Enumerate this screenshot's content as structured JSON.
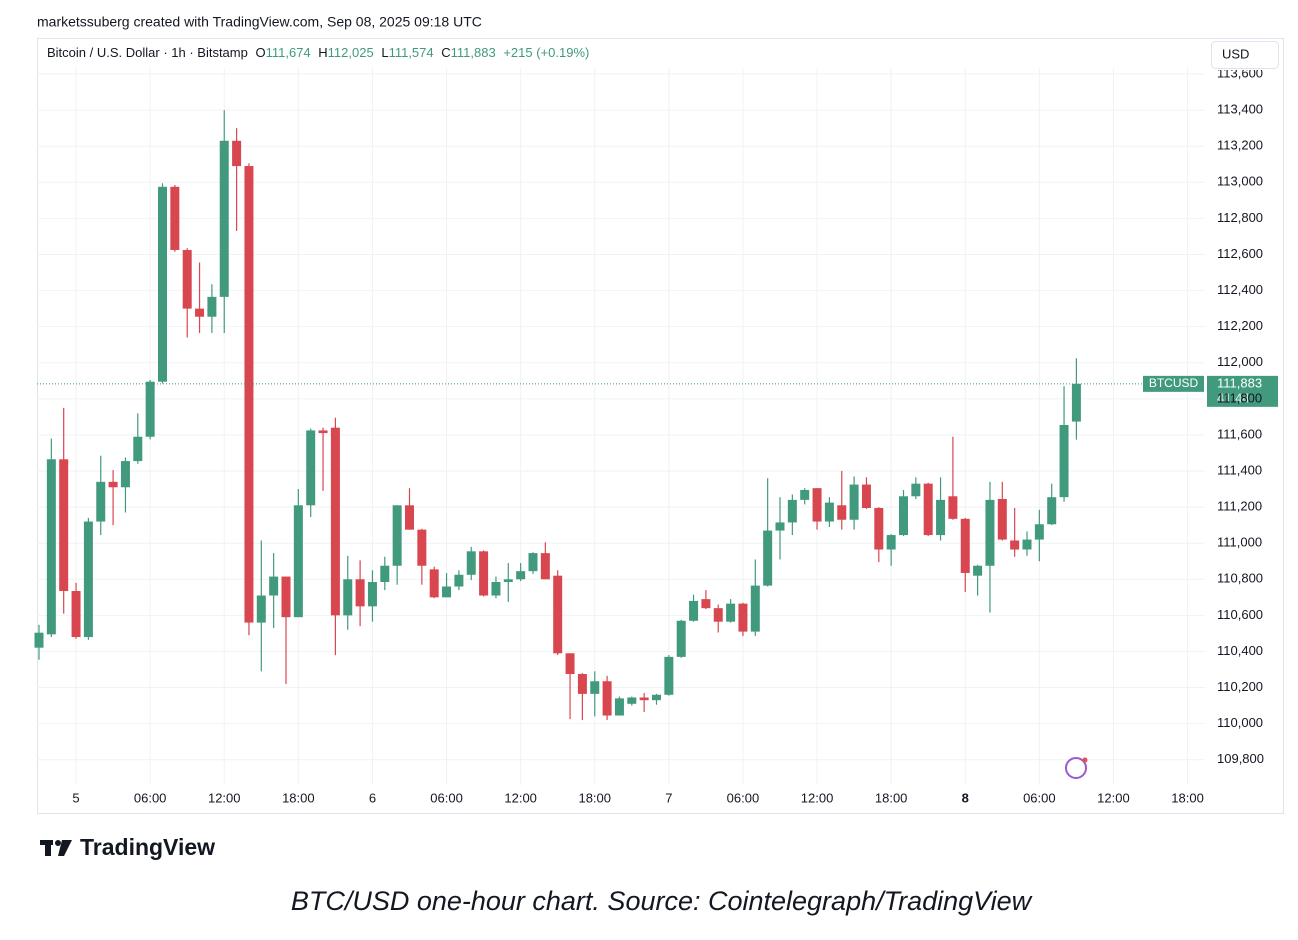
{
  "credit": "marketssuberg created with TradingView.com, Sep 08, 2025 09:18 UTC",
  "currency_button": "USD",
  "logo": "TradingView",
  "caption": "BTC/USD one-hour chart. Source: Cointelegraph/TradingView",
  "chart_data": {
    "type": "candlestick",
    "legend": {
      "symbol": "Bitcoin / U.S. Dollar · 1h · Bitstamp",
      "o_label": "O",
      "o": "111,674",
      "h_label": "H",
      "h": "112,025",
      "l_label": "L",
      "l": "111,574",
      "c_label": "C",
      "c": "111,883",
      "change": "+215 (+0.19%)"
    },
    "price_label": {
      "symbol": "BTCUSD",
      "price": "111,883",
      "countdown": "41:44"
    },
    "up_color": "#419a7e",
    "down_color": "#d8464f",
    "grid": true,
    "ylim": [
      109660,
      113650
    ],
    "yticks": [
      {
        "value": 109800,
        "label": "109,800"
      },
      {
        "value": 110000,
        "label": "110,000"
      },
      {
        "value": 110200,
        "label": "110,200"
      },
      {
        "value": 110400,
        "label": "110,400"
      },
      {
        "value": 110600,
        "label": "110,600"
      },
      {
        "value": 110800,
        "label": "110,800"
      },
      {
        "value": 111000,
        "label": "111,000"
      },
      {
        "value": 111200,
        "label": "111,200"
      },
      {
        "value": 111400,
        "label": "111,400"
      },
      {
        "value": 111600,
        "label": "111,600"
      },
      {
        "value": 111800,
        "label": "111,800"
      },
      {
        "value": 112000,
        "label": "112,000"
      },
      {
        "value": 112200,
        "label": "112,200"
      },
      {
        "value": 112400,
        "label": "112,400"
      },
      {
        "value": 112600,
        "label": "112,600"
      },
      {
        "value": 112800,
        "label": "112,800"
      },
      {
        "value": 113000,
        "label": "113,000"
      },
      {
        "value": 113200,
        "label": "113,200"
      },
      {
        "value": 113400,
        "label": "113,400"
      },
      {
        "value": 113600,
        "label": "113,600"
      }
    ],
    "categories": [
      null,
      null,
      null,
      "5",
      null,
      null,
      null,
      null,
      null,
      "06:00",
      null,
      null,
      null,
      null,
      null,
      "12:00",
      null,
      null,
      null,
      null,
      null,
      "18:00",
      null,
      null,
      null,
      null,
      null,
      "6",
      null,
      null,
      null,
      null,
      null,
      "06:00",
      null,
      null,
      null,
      null,
      null,
      "12:00",
      null,
      null,
      null,
      null,
      null,
      "18:00",
      null,
      null,
      null,
      null,
      null,
      "7",
      null,
      null,
      null,
      null,
      null,
      "06:00",
      null,
      null,
      null,
      null,
      null,
      "12:00",
      null,
      null,
      null,
      null,
      null,
      "18:00",
      null,
      null,
      null,
      null,
      null,
      "8",
      null,
      null,
      null,
      null,
      null,
      "06:00",
      null,
      null,
      null,
      null,
      null,
      "12:00",
      null,
      null,
      null,
      null,
      null,
      "18:00",
      null
    ],
    "open": [
      110421,
      110495,
      111465,
      110735,
      110480,
      111120,
      111340,
      111310,
      111455,
      111590,
      111895,
      112975,
      112625,
      112300,
      112255,
      112365,
      113230,
      113090,
      110560,
      110710,
      110815,
      110590,
      111210,
      111625,
      111640,
      110600,
      110800,
      110650,
      110785,
      110875,
      111210,
      111075,
      110855,
      110700,
      110760,
      110825,
      110955,
      110710,
      110785,
      110800,
      110845,
      110945,
      110820,
      110390,
      110275,
      110165,
      110235,
      110045,
      110110,
      110145,
      110130,
      110160,
      110370,
      110570,
      110690,
      110640,
      110565,
      110665,
      110510,
      110765,
      111070,
      111115,
      111240,
      111305,
      111120,
      111210,
      111130,
      111325,
      111195,
      110965,
      111045,
      111260,
      111330,
      111045,
      111260,
      111135,
      110820,
      110875,
      111245,
      111015,
      110965,
      111020,
      111105,
      111255,
      111674,
      null,
      null,
      null,
      null,
      null,
      null,
      null,
      null,
      null,
      null
    ],
    "high": [
      110548,
      111580,
      111750,
      110780,
      111140,
      111485,
      111405,
      111475,
      111720,
      111905,
      112995,
      112985,
      112635,
      112555,
      112435,
      113400,
      113300,
      113105,
      111015,
      110945,
      110815,
      111300,
      111635,
      111640,
      111695,
      110930,
      110905,
      110850,
      110925,
      111210,
      111305,
      111080,
      110870,
      110835,
      110850,
      110980,
      110960,
      110815,
      110890,
      110890,
      110950,
      111005,
      110850,
      110390,
      110280,
      110290,
      110265,
      110150,
      110150,
      110170,
      110165,
      110380,
      110575,
      110715,
      110740,
      110660,
      110690,
      110670,
      110910,
      111360,
      111255,
      111270,
      111305,
      111305,
      111255,
      111400,
      111370,
      111365,
      111200,
      111050,
      111295,
      111365,
      111335,
      111365,
      111590,
      111140,
      110880,
      111340,
      111340,
      111195,
      111065,
      111185,
      111330,
      111870,
      112025,
      null,
      null,
      null,
      null,
      null,
      null,
      null,
      null,
      null,
      null
    ],
    "low": [
      110354,
      110480,
      110610,
      110470,
      110465,
      111045,
      111100,
      111170,
      111440,
      111575,
      111885,
      112615,
      112140,
      112165,
      112165,
      112165,
      112730,
      110490,
      110290,
      110530,
      110220,
      110590,
      111145,
      111290,
      110380,
      110520,
      110540,
      110565,
      110740,
      110770,
      111075,
      110770,
      110695,
      110700,
      110740,
      110795,
      110705,
      110695,
      110675,
      110790,
      110830,
      110800,
      110380,
      110025,
      110020,
      110040,
      110020,
      110045,
      110100,
      110065,
      110105,
      110155,
      110365,
      110565,
      110635,
      110505,
      110560,
      110485,
      110485,
      110760,
      110910,
      111045,
      111215,
      111075,
      111090,
      111075,
      111075,
      111190,
      110895,
      110875,
      111040,
      111245,
      111040,
      111015,
      111130,
      110730,
      110710,
      110615,
      111015,
      110925,
      110930,
      110900,
      111100,
      111230,
      111574,
      null,
      null,
      null,
      null,
      null,
      null,
      null,
      null,
      null,
      null
    ],
    "close": [
      110504,
      111465,
      110735,
      110480,
      111120,
      111340,
      111310,
      111455,
      111590,
      111895,
      112975,
      112625,
      112300,
      112255,
      112365,
      113230,
      113090,
      110560,
      110710,
      110815,
      110590,
      111210,
      111625,
      111610,
      110600,
      110800,
      110650,
      110785,
      110875,
      111210,
      111075,
      110875,
      110700,
      110760,
      110825,
      110955,
      110710,
      110785,
      110800,
      110845,
      110945,
      110800,
      110390,
      110275,
      110165,
      110235,
      110045,
      110140,
      110145,
      110130,
      110160,
      110370,
      110570,
      110680,
      110640,
      110565,
      110665,
      110510,
      110765,
      111070,
      111115,
      111240,
      111295,
      111120,
      111225,
      111130,
      111325,
      111195,
      110965,
      111045,
      111260,
      111330,
      111045,
      111240,
      111135,
      110835,
      110875,
      111240,
      111020,
      110965,
      111020,
      111105,
      111255,
      111655,
      111883,
      null,
      null,
      null,
      null,
      null,
      null,
      null,
      null,
      null,
      null
    ]
  }
}
